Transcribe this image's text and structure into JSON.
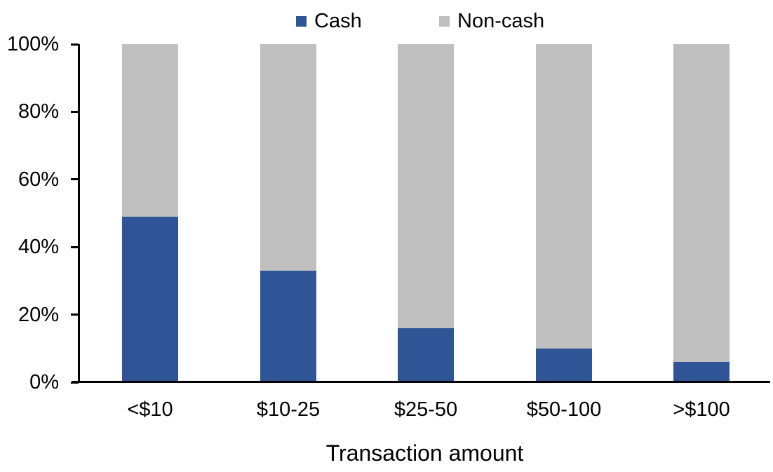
{
  "chart_data": {
    "type": "bar",
    "stacked": true,
    "title": "",
    "xlabel": "Transaction amount",
    "ylabel": "",
    "categories": [
      "<$10",
      "$10-25",
      "$25-50",
      "$50-100",
      ">$100"
    ],
    "series": [
      {
        "name": "Cash",
        "color": "#2F5597",
        "values": [
          49,
          33,
          16,
          10,
          6
        ]
      },
      {
        "name": "Non-cash",
        "color": "#BFBFBF",
        "values": [
          51,
          67,
          84,
          90,
          94
        ]
      }
    ],
    "ylim": [
      0,
      100
    ],
    "ytick_step": 20,
    "ytick_labels": [
      "0%",
      "20%",
      "40%",
      "60%",
      "80%",
      "100%"
    ],
    "legend_position": "top-center",
    "grid": false,
    "colors": {
      "axis": "#000000",
      "text": "#000000",
      "background": "#FFFFFF"
    }
  }
}
